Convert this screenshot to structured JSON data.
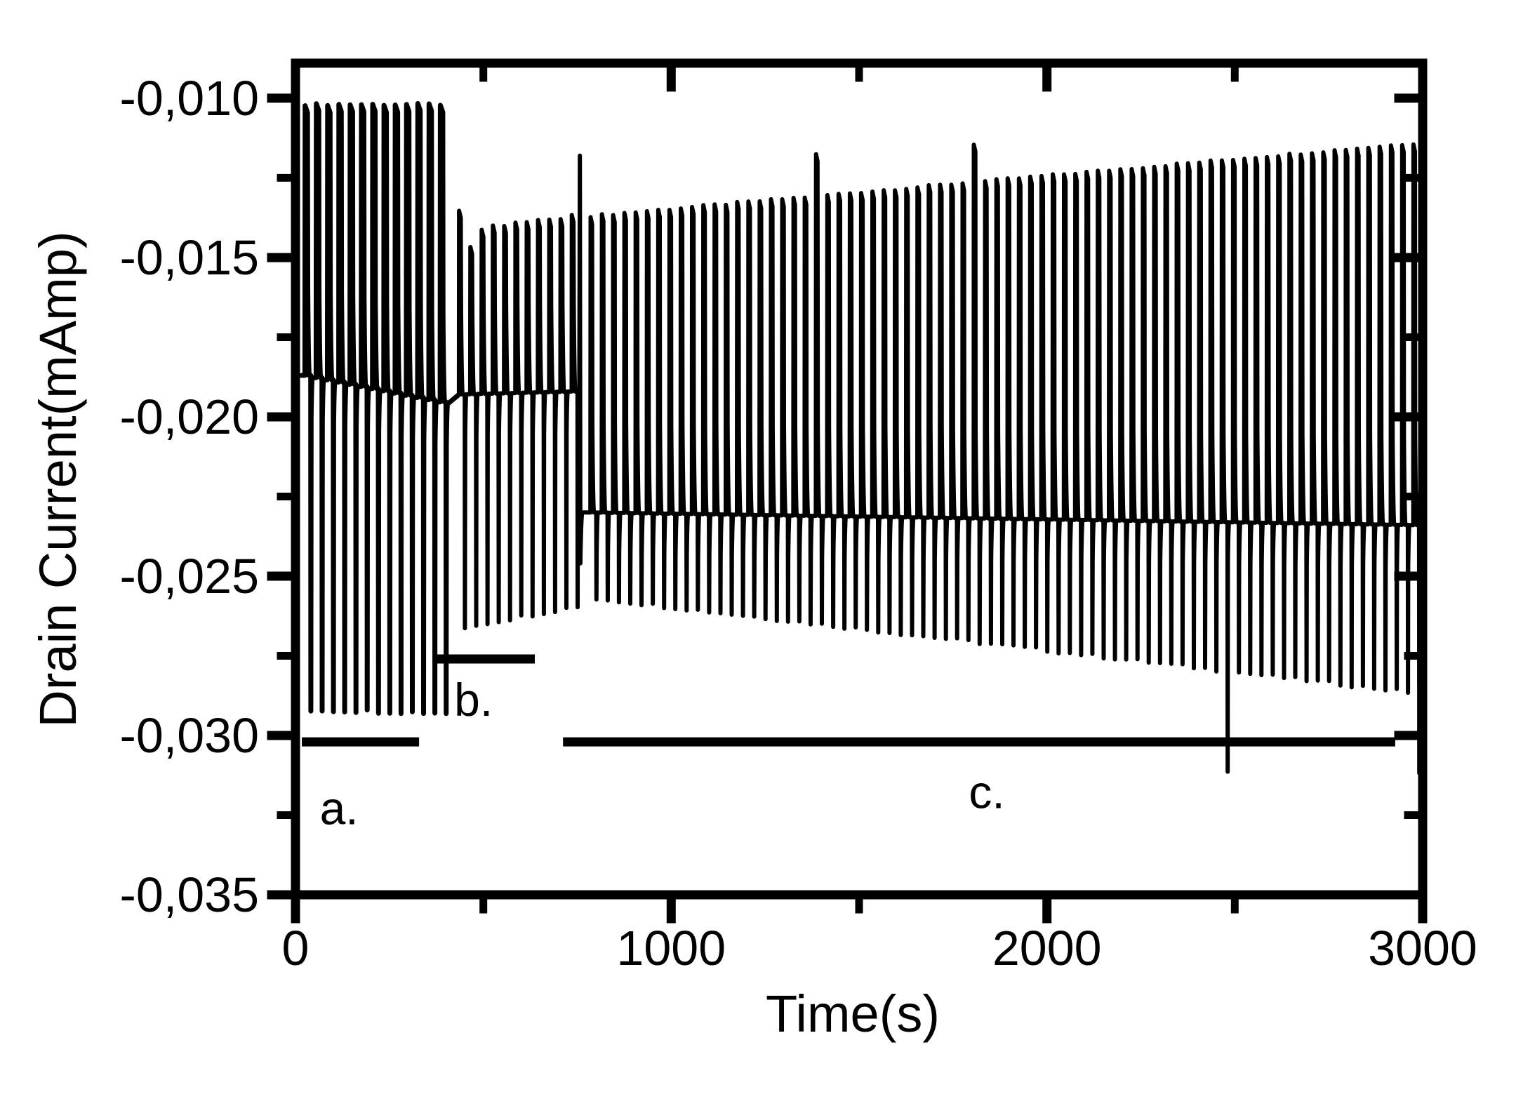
{
  "chart_data": {
    "type": "line",
    "title": "",
    "xlabel": "Time(s)",
    "ylabel": "Drain Current(mAmp)",
    "xlim": [
      0,
      3000
    ],
    "ylim": [
      -0.035,
      -0.0089
    ],
    "grid": false,
    "legend": "none",
    "colors": {
      "line": "#000000",
      "background": "#ffffff",
      "axis": "#000000"
    },
    "x_ticks": {
      "major_values": [
        0,
        1000,
        2000,
        3000
      ],
      "major_labels": [
        "0",
        "1000",
        "2000",
        "3000"
      ],
      "minor_values": [
        500,
        1500,
        2500
      ]
    },
    "y_ticks": {
      "major_values": [
        -0.01,
        -0.015,
        -0.02,
        -0.025,
        -0.03,
        -0.035
      ],
      "major_labels": [
        "-0,010",
        "-0,015",
        "-0,020",
        "-0,025",
        "-0,030",
        "-0,035"
      ],
      "minor_values": [
        -0.0125,
        -0.0175,
        -0.0225,
        -0.0275,
        -0.0325
      ]
    },
    "signal": {
      "period_s": 30,
      "description": "Pulsed drain-current response: each 30 s cycle rises to a top plateau, decays exponentially back to baseline, then overshoots downward and recovers.",
      "segments": [
        {
          "name": "a",
          "t_start": 25,
          "t_end": 415,
          "cycle_rise": 0.5,
          "dwell": 7,
          "top_start": -0.0102,
          "top_end": -0.0102,
          "bottom_start": -0.0292,
          "bottom_end": -0.0293,
          "base_start": -0.0187,
          "base_end": -0.0196,
          "stroke": 7
        },
        {
          "name": "b",
          "t_start": 435,
          "t_end": 755,
          "cycle_rise": 0.5,
          "dwell": 5,
          "tops": [
            -0.0135,
            -0.0147,
            -0.0141,
            -0.014,
            -0.014,
            -0.0139,
            -0.0139,
            -0.0138,
            -0.0138,
            -0.0138,
            -0.0137
          ],
          "top_start": -0.0141,
          "top_end": -0.0137,
          "bottom_start": -0.0266,
          "bottom_end": -0.0259,
          "base_start": -0.0193,
          "base_end": -0.0192,
          "stroke": 6
        },
        {
          "name": "c",
          "t_start": 785,
          "t_end": 2995,
          "cycle_rise": 0.5,
          "dwell": 4.5,
          "top_start": -0.0137,
          "top_end": -0.0114,
          "bottom_start": -0.0257,
          "bottom_end": -0.0287,
          "base_start": -0.023,
          "base_end": -0.0234,
          "stroke": 6
        }
      ],
      "events": [
        {
          "type": "up_spike",
          "t": 757,
          "value": -0.0118,
          "settle_to": -0.023
        }
      ],
      "up_outliers": [
        {
          "t0": 1385,
          "delta": 0.0013
        },
        {
          "t0": 1805,
          "delta": 0.0012
        }
      ],
      "down_outliers": [
        {
          "t0": 2465,
          "delta": -0.0031
        },
        {
          "t0": 2975,
          "delta": -0.0025
        }
      ]
    },
    "annotations": {
      "bars": [
        {
          "label": "a.",
          "t_start": 17,
          "t_end": 329,
          "value": -0.0302,
          "label_t": 116,
          "label_value": -0.0323
        },
        {
          "label": "b.",
          "t_start": 366,
          "t_end": 637,
          "value": -0.0276,
          "label_t": 474,
          "label_value": -0.0289
        },
        {
          "label": "c.",
          "t_start": 712,
          "t_end": 2927,
          "value": -0.0302,
          "label_t": 1840,
          "label_value": -0.0318
        }
      ]
    }
  }
}
